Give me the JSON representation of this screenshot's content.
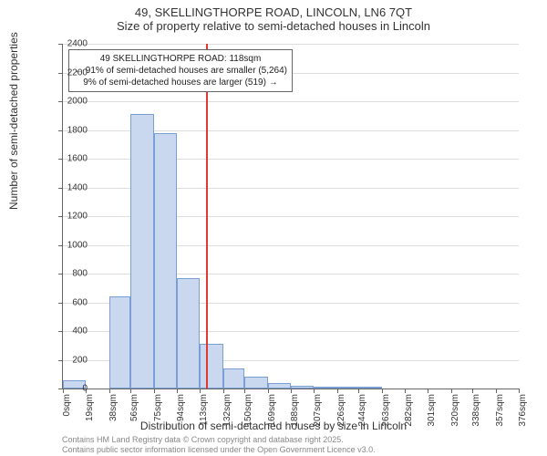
{
  "chart": {
    "type": "histogram",
    "title_main": "49, SKELLINGTHORPE ROAD, LINCOLN, LN6 7QT",
    "title_sub": "Size of property relative to semi-detached houses in Lincoln",
    "y_axis_label": "Number of semi-detached properties",
    "x_axis_label": "Distribution of semi-detached houses by size in Lincoln",
    "title_fontsize": 13,
    "axis_label_fontsize": 12,
    "tick_fontsize": 10,
    "background_color": "#ffffff",
    "grid_color": "#dddddd",
    "axis_color": "#666666",
    "bar_fill": "#c9d8ef",
    "bar_border": "#7a9fd4",
    "marker_color": "#de3a33",
    "annotation_border": "#666666",
    "annotation_bg": "#ffffff",
    "footer_color": "#888888",
    "ylim": [
      0,
      2400
    ],
    "ytick_step": 200,
    "y_ticks": [
      0,
      200,
      400,
      600,
      800,
      1000,
      1200,
      1400,
      1600,
      1800,
      2000,
      2200,
      2400
    ],
    "x_ticks": [
      "0sqm",
      "19sqm",
      "38sqm",
      "56sqm",
      "75sqm",
      "94sqm",
      "113sqm",
      "132sqm",
      "150sqm",
      "169sqm",
      "188sqm",
      "207sqm",
      "226sqm",
      "244sqm",
      "263sqm",
      "282sqm",
      "301sqm",
      "320sqm",
      "338sqm",
      "357sqm",
      "376sqm"
    ],
    "x_tick_values": [
      0,
      19,
      38,
      56,
      75,
      94,
      113,
      132,
      150,
      169,
      188,
      207,
      226,
      244,
      263,
      282,
      301,
      320,
      338,
      357,
      376
    ],
    "bars": [
      {
        "x0": 0,
        "x1": 19,
        "value": 60
      },
      {
        "x0": 19,
        "x1": 38,
        "value": 0
      },
      {
        "x0": 38,
        "x1": 56,
        "value": 640
      },
      {
        "x0": 56,
        "x1": 75,
        "value": 1910
      },
      {
        "x0": 75,
        "x1": 94,
        "value": 1780
      },
      {
        "x0": 94,
        "x1": 113,
        "value": 770
      },
      {
        "x0": 113,
        "x1": 132,
        "value": 310
      },
      {
        "x0": 132,
        "x1": 150,
        "value": 140
      },
      {
        "x0": 150,
        "x1": 169,
        "value": 80
      },
      {
        "x0": 169,
        "x1": 188,
        "value": 40
      },
      {
        "x0": 188,
        "x1": 207,
        "value": 20
      },
      {
        "x0": 207,
        "x1": 226,
        "value": 15
      },
      {
        "x0": 226,
        "x1": 244,
        "value": 8
      },
      {
        "x0": 244,
        "x1": 263,
        "value": 5
      }
    ],
    "marker_x": 118,
    "x_max": 376,
    "annotation": {
      "line1": "49 SKELLINGTHORPE ROAD: 118sqm",
      "line2": "← 91% of semi-detached houses are smaller (5,264)",
      "line3": "9% of semi-detached houses are larger (519) →"
    },
    "footer_line1": "Contains HM Land Registry data © Crown copyright and database right 2025.",
    "footer_line2": "Contains public sector information licensed under the Open Government Licence v3.0."
  }
}
